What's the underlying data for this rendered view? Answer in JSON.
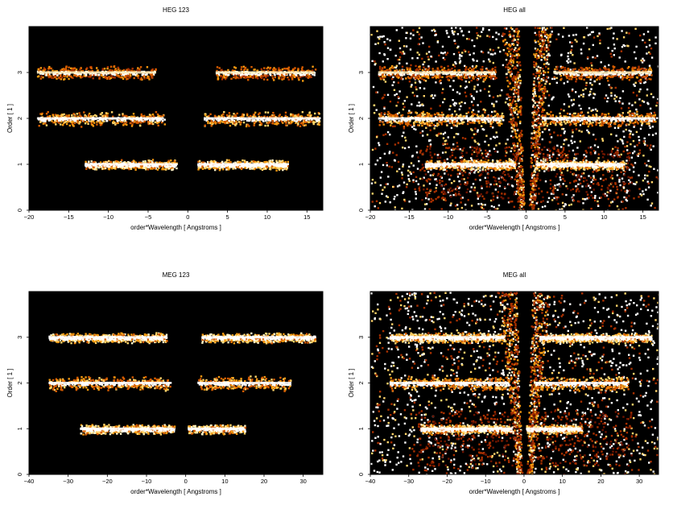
{
  "chart_data": [
    {
      "type": "heatmap",
      "title": "HEG 123",
      "xlabel": "order*Wavelength [ Angstroms ]",
      "ylabel": "Order [ 1 ]",
      "xlim": [
        -20,
        17
      ],
      "ylim": [
        0,
        4
      ],
      "xticks": [
        -20,
        -15,
        -10,
        -5,
        0,
        5,
        10,
        15
      ],
      "yticks": [
        0,
        1,
        2,
        3
      ],
      "background": "#000000",
      "bands": [
        {
          "order": 1,
          "x_start": -13,
          "x_end": -1.5,
          "intensity": "high"
        },
        {
          "order": 1,
          "x_start": 1.2,
          "x_end": 12.5,
          "intensity": "high"
        },
        {
          "order": 2,
          "x_start": -19,
          "x_end": -3,
          "intensity": "medium"
        },
        {
          "order": 2,
          "x_start": 2,
          "x_end": 16.5,
          "intensity": "medium"
        },
        {
          "order": 3,
          "x_start": -19,
          "x_end": -4,
          "intensity": "low"
        },
        {
          "order": 3,
          "x_start": 3.5,
          "x_end": 16,
          "intensity": "low"
        }
      ],
      "has_diagonal_artifacts": false,
      "has_background_noise": false
    },
    {
      "type": "heatmap",
      "title": "HEG all",
      "xlabel": "order*Wavelength [ Angstroms ]",
      "ylabel": "Order [ 1 ]",
      "xlim": [
        -20,
        17
      ],
      "ylim": [
        0,
        4
      ],
      "xticks": [
        -20,
        -15,
        -10,
        -5,
        0,
        5,
        10,
        15
      ],
      "yticks": [
        0,
        1,
        2,
        3
      ],
      "background": "#000000",
      "bands": [
        {
          "order": 1,
          "x_start": -13,
          "x_end": -1.5,
          "intensity": "high"
        },
        {
          "order": 1,
          "x_start": 1.2,
          "x_end": 12.5,
          "intensity": "high"
        },
        {
          "order": 2,
          "x_start": -19,
          "x_end": -3,
          "intensity": "medium"
        },
        {
          "order": 2,
          "x_start": 2,
          "x_end": 16.5,
          "intensity": "medium"
        },
        {
          "order": 3,
          "x_start": -19,
          "x_end": -4,
          "intensity": "low"
        },
        {
          "order": 3,
          "x_start": 3.5,
          "x_end": 16,
          "intensity": "low"
        }
      ],
      "has_diagonal_artifacts": true,
      "has_background_noise": true
    },
    {
      "type": "heatmap",
      "title": "MEG 123",
      "xlabel": "order*Wavelength [ Angstroms ]",
      "ylabel": "Order [ 1 ]",
      "xlim": [
        -40,
        35
      ],
      "ylim": [
        0,
        4
      ],
      "xticks": [
        -40,
        -30,
        -20,
        -10,
        0,
        10,
        20,
        30
      ],
      "yticks": [
        0,
        1,
        2,
        3
      ],
      "background": "#000000",
      "bands": [
        {
          "order": 1,
          "x_start": -27,
          "x_end": -3,
          "intensity": "high"
        },
        {
          "order": 1,
          "x_start": 0.5,
          "x_end": 15,
          "intensity": "high"
        },
        {
          "order": 2,
          "x_start": -35,
          "x_end": -4,
          "intensity": "medium"
        },
        {
          "order": 2,
          "x_start": 3,
          "x_end": 27,
          "intensity": "medium"
        },
        {
          "order": 3,
          "x_start": -35,
          "x_end": -5,
          "intensity": "high"
        },
        {
          "order": 3,
          "x_start": 4,
          "x_end": 33,
          "intensity": "high"
        }
      ],
      "has_diagonal_artifacts": false,
      "has_background_noise": false
    },
    {
      "type": "heatmap",
      "title": "MEG all",
      "xlabel": "order*Wavelength [ Angstroms ]",
      "ylabel": "Order [ 1 ]",
      "xlim": [
        -40,
        35
      ],
      "ylim": [
        0,
        4
      ],
      "xticks": [
        -40,
        -30,
        -20,
        -10,
        0,
        10,
        20,
        30
      ],
      "yticks": [
        0,
        1,
        2,
        3
      ],
      "background": "#000000",
      "bands": [
        {
          "order": 1,
          "x_start": -27,
          "x_end": -3,
          "intensity": "high"
        },
        {
          "order": 1,
          "x_start": 0.5,
          "x_end": 15,
          "intensity": "high"
        },
        {
          "order": 2,
          "x_start": -35,
          "x_end": -4,
          "intensity": "medium"
        },
        {
          "order": 2,
          "x_start": 3,
          "x_end": 27,
          "intensity": "medium"
        },
        {
          "order": 3,
          "x_start": -35,
          "x_end": -5,
          "intensity": "high"
        },
        {
          "order": 3,
          "x_start": 4,
          "x_end": 33,
          "intensity": "high"
        }
      ],
      "has_diagonal_artifacts": true,
      "has_background_noise": true
    }
  ]
}
